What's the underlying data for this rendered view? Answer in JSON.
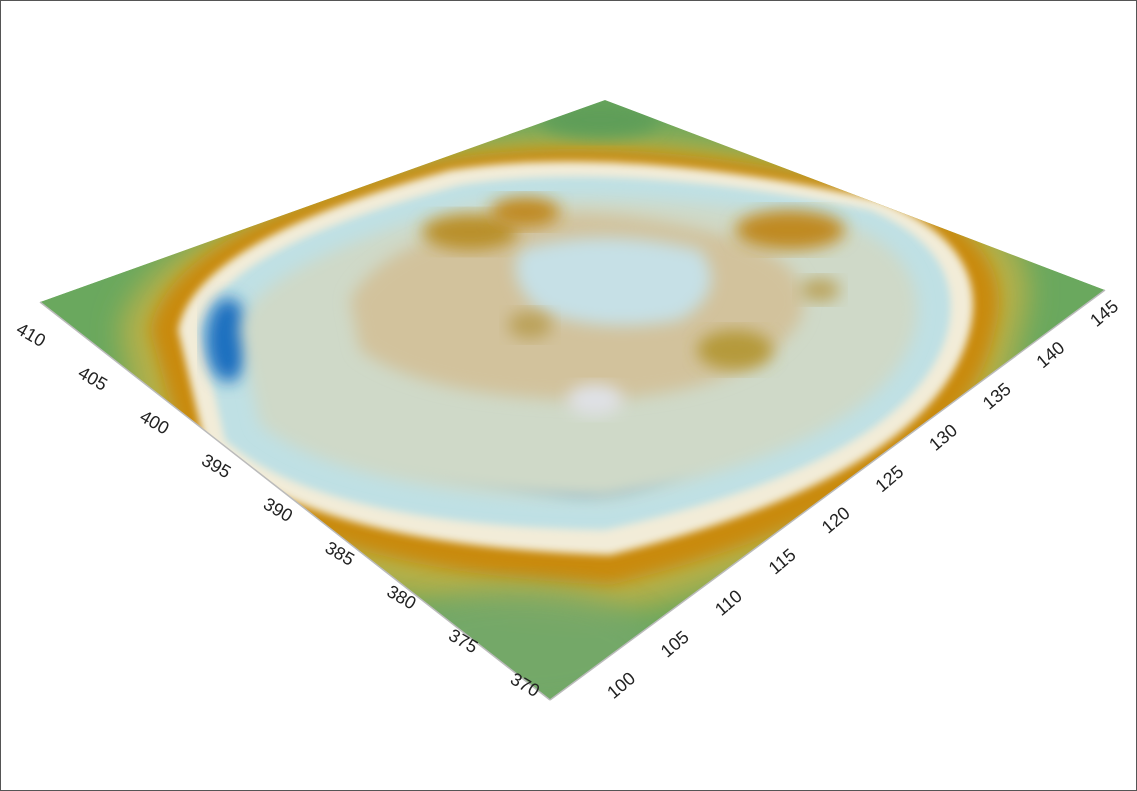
{
  "chart_data": {
    "type": "surface",
    "title": "",
    "xlabel": "",
    "ylabel": "",
    "zlabel": "",
    "left_axis": {
      "ticks": [
        "370",
        "375",
        "380",
        "385",
        "390",
        "395",
        "400",
        "405",
        "410"
      ],
      "range": [
        370,
        410
      ]
    },
    "right_axis": {
      "ticks": [
        "100",
        "105",
        "110",
        "115",
        "120",
        "125",
        "130",
        "135",
        "140",
        "145"
      ],
      "range": [
        100,
        145
      ]
    },
    "colors": {
      "outer_low": "#5fa860",
      "rampart": "#c98a10",
      "bank_light": "#f2ecd8",
      "ditch": "#1e70c0",
      "interior": "#cfd9c8",
      "interior_mound": "#b59a3a",
      "axis": "#bbbbbb"
    }
  }
}
